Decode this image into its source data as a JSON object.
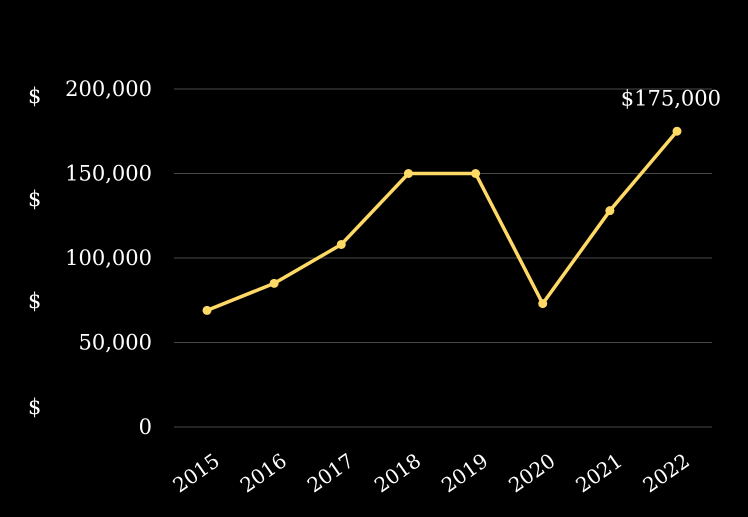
{
  "chart_data": {
    "type": "line",
    "title": "",
    "xlabel": "",
    "ylabel": "",
    "categories": [
      "2015",
      "2016",
      "2017",
      "2018",
      "2019",
      "2020",
      "2021",
      "2022"
    ],
    "series": [
      {
        "values": [
          69000,
          85000,
          108000,
          150000,
          150000,
          73000,
          128000,
          175000
        ]
      }
    ],
    "ylim": [
      0,
      200000
    ],
    "y_ticks": [
      0,
      50000,
      100000,
      150000,
      200000
    ],
    "y_tick_labels": [
      "0",
      "50,000",
      "100,000",
      "150,000",
      "200,000"
    ],
    "currency_symbols": [
      "$",
      "$",
      "$",
      "$"
    ],
    "data_labels": [
      {
        "category": "2022",
        "text": "$175,000"
      }
    ],
    "grid": true,
    "legend": "none",
    "colors": {
      "background": "#000000",
      "line": "#FFD966",
      "grid": "#4a4a4a",
      "text": "#ffffff"
    }
  }
}
